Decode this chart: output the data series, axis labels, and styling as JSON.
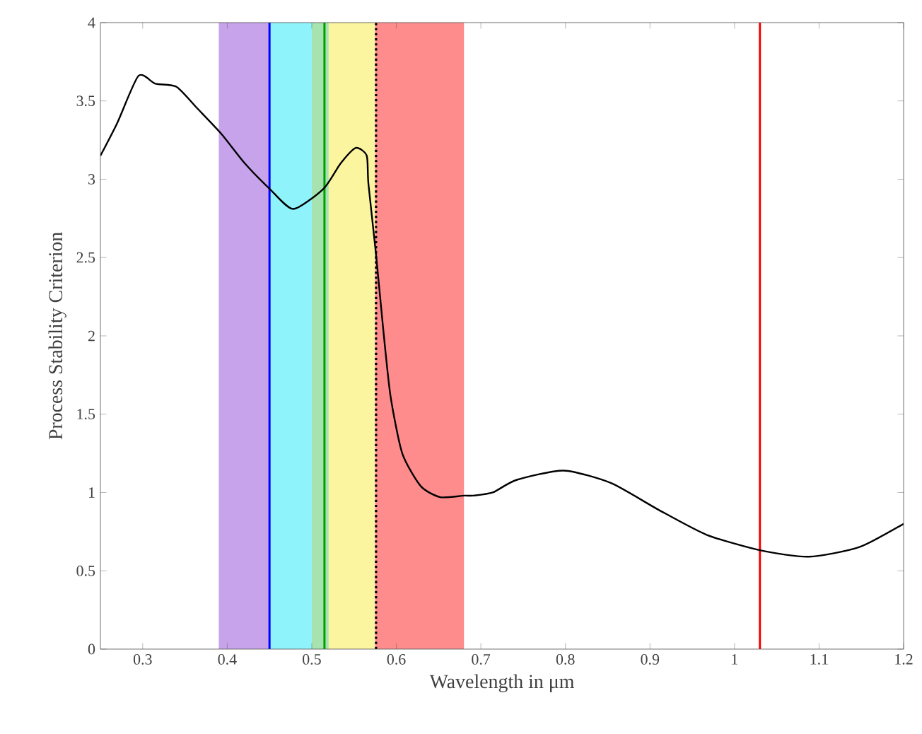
{
  "chart_data": {
    "type": "line",
    "xlabel": "Wavelength in μm",
    "ylabel": "Process Stability Criterion",
    "x": [
      0.25,
      0.27,
      0.295,
      0.315,
      0.34,
      0.365,
      0.393,
      0.421,
      0.45,
      0.478,
      0.514,
      0.534,
      0.552,
      0.565,
      0.567,
      0.576,
      0.584,
      0.593,
      0.607,
      0.629,
      0.652,
      0.68,
      0.691,
      0.714,
      0.742,
      0.798,
      0.854,
      0.91,
      0.967,
      1.031,
      1.088,
      1.147,
      1.2
    ],
    "series": [
      {
        "color": "#000000",
        "values": [
          3.15,
          3.36,
          3.66,
          3.61,
          3.59,
          3.45,
          3.29,
          3.1,
          2.94,
          2.81,
          2.94,
          3.1,
          3.2,
          3.15,
          2.97,
          2.52,
          2.07,
          1.62,
          1.25,
          1.04,
          0.97,
          0.98,
          0.98,
          1.0,
          1.08,
          1.14,
          1.06,
          0.89,
          0.73,
          0.63,
          0.59,
          0.65,
          0.8
        ]
      }
    ],
    "xlim": [
      0.25,
      1.2
    ],
    "ylim": [
      0,
      4
    ],
    "xticks": [
      0.3,
      0.4,
      0.5,
      0.6,
      0.7,
      0.8,
      0.9,
      1,
      1.1,
      1.2
    ],
    "yticks": [
      0,
      0.5,
      1,
      1.5,
      2,
      2.5,
      3,
      3.5,
      4
    ],
    "bands": [
      {
        "axis": "x",
        "from": 0.39,
        "to": 0.45,
        "color": "#c6a3ea"
      },
      {
        "axis": "x",
        "from": 0.45,
        "to": 0.5,
        "color": "#8ff3fb"
      },
      {
        "axis": "x",
        "from": 0.5,
        "to": 0.52,
        "color": "#a6e3b0"
      },
      {
        "axis": "x",
        "from": 0.52,
        "to": 0.575,
        "color": "#fbf5a0"
      },
      {
        "axis": "x",
        "from": 0.575,
        "to": 0.68,
        "color": "#ff8c8c"
      }
    ],
    "ref_lines": [
      {
        "axis": "x",
        "value": 0.45,
        "color": "#0000ff",
        "line_style": "solid"
      },
      {
        "axis": "x",
        "value": 0.515,
        "color": "#00a000",
        "line_style": "solid"
      },
      {
        "axis": "x",
        "value": 0.576,
        "color": "#000000",
        "line_style": "dotted"
      },
      {
        "axis": "x",
        "value": 1.03,
        "color": "#ff0000",
        "line_style": "solid"
      }
    ],
    "grid": false,
    "marker": "none",
    "line_style": "solid"
  }
}
